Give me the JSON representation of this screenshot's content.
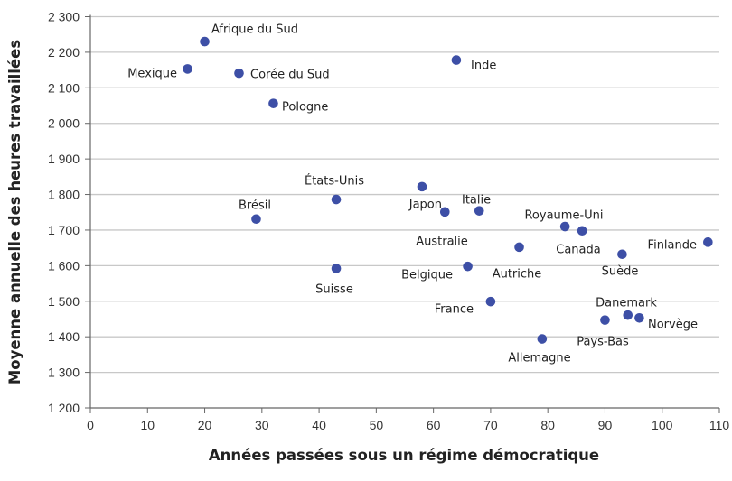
{
  "chart_data": {
    "type": "scatter",
    "xlabel": "Années passées sous un régime démocratique",
    "ylabel": "Moyenne annuelle des heures travaillées",
    "xlim": [
      0,
      110
    ],
    "ylim": [
      1200,
      2300
    ],
    "xticks": [
      "0",
      "10",
      "20",
      "30",
      "40",
      "50",
      "60",
      "70",
      "80",
      "90",
      "100",
      "110"
    ],
    "yticks": [
      "1 200",
      "1 300",
      "1 400",
      "1 500",
      "1 600",
      "1 700",
      "1 800",
      "1 900",
      "2 000",
      "2 100",
      "2 200",
      "2 300"
    ],
    "grid": "horizontal",
    "point_color": "#3d4fa6",
    "points": [
      {
        "label": "Afrique du Sud",
        "x": 20,
        "y": 2230
      },
      {
        "label": "Mexique",
        "x": 17,
        "y": 2153
      },
      {
        "label": "Corée du Sud",
        "x": 26,
        "y": 2141
      },
      {
        "label": "Pologne",
        "x": 32,
        "y": 2056
      },
      {
        "label": "Inde",
        "x": 64,
        "y": 2178
      },
      {
        "label": "Brésil",
        "x": 29,
        "y": 1731
      },
      {
        "label": "États-Unis",
        "x": 43,
        "y": 1786
      },
      {
        "label": "Suisse",
        "x": 43,
        "y": 1592
      },
      {
        "label": "Australie",
        "x": 58,
        "y": 1822
      },
      {
        "label": "Japon",
        "x": 62,
        "y": 1751
      },
      {
        "label": "Italie",
        "x": 68,
        "y": 1754
      },
      {
        "label": "Belgique",
        "x": 66,
        "y": 1598
      },
      {
        "label": "Autriche",
        "x": 75,
        "y": 1652
      },
      {
        "label": "Royaume-Uni",
        "x": 83,
        "y": 1710
      },
      {
        "label": "Canada",
        "x": 86,
        "y": 1698
      },
      {
        "label": "Finlande",
        "x": 108,
        "y": 1666
      },
      {
        "label": "Suède",
        "x": 93,
        "y": 1632
      },
      {
        "label": "France",
        "x": 70,
        "y": 1499
      },
      {
        "label": "Danemark",
        "x": 94,
        "y": 1461
      },
      {
        "label": "Norvège",
        "x": 96,
        "y": 1453
      },
      {
        "label": "Pays-Bas",
        "x": 90,
        "y": 1447
      },
      {
        "label": "Allemagne",
        "x": 79,
        "y": 1394
      }
    ]
  }
}
